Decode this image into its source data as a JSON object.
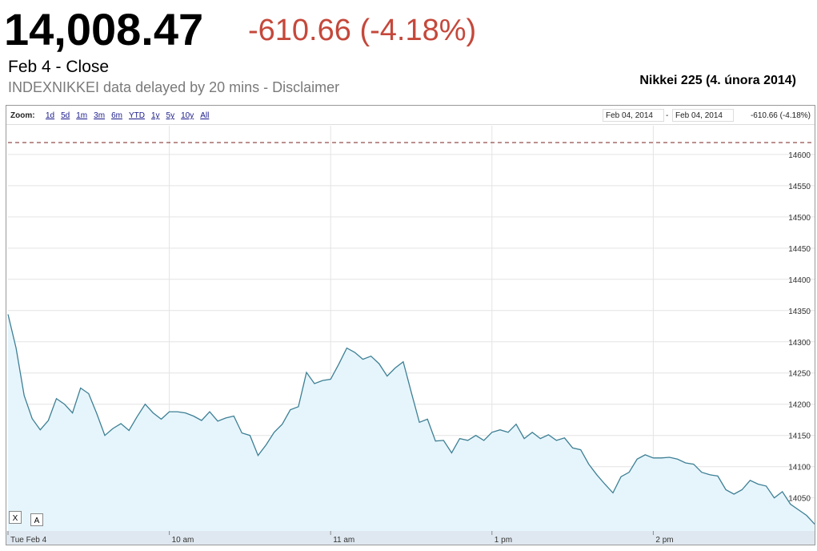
{
  "header": {
    "price": "14,008.47",
    "change": "-610.66 (-4.18%)",
    "status": "Feb 4 - Close",
    "source": "INDEXNIKKEI data delayed by 20 mins - Disclaimer",
    "caption": "Nikkei 225 (4. února 2014)"
  },
  "toolbar": {
    "zoom_label": "Zoom:",
    "zoom_options": [
      "1d",
      "5d",
      "1m",
      "3m",
      "6m",
      "YTD",
      "1y",
      "5y",
      "10y",
      "All"
    ],
    "range_start": "Feb 04, 2014",
    "range_separator": "-",
    "range_end": "Feb 04, 2014",
    "range_change": "-610.66 (-4.18%)",
    "buttons": [
      "X",
      "A"
    ]
  },
  "chart_data": {
    "type": "line",
    "categories": [
      "Tue Feb 4",
      null,
      null,
      null,
      null,
      null,
      null,
      null,
      null,
      null,
      null,
      null,
      null,
      null,
      null,
      null,
      null,
      null,
      null,
      null,
      "10 am",
      null,
      null,
      null,
      null,
      null,
      null,
      null,
      null,
      null,
      null,
      null,
      null,
      null,
      null,
      null,
      null,
      null,
      null,
      null,
      "11 am",
      null,
      null,
      null,
      null,
      null,
      null,
      null,
      null,
      null,
      null,
      null,
      null,
      null,
      null,
      null,
      null,
      null,
      null,
      null,
      "1 pm",
      null,
      null,
      null,
      null,
      null,
      null,
      null,
      null,
      null,
      null,
      null,
      null,
      null,
      null,
      null,
      null,
      null,
      null,
      null,
      "2 pm",
      null,
      null,
      null,
      null,
      null,
      null,
      null,
      null,
      null,
      null,
      null,
      null,
      null,
      null,
      null,
      null,
      null,
      null,
      null,
      null
    ],
    "series": [
      {
        "name": "Nikkei 225",
        "color": "#3d7f94",
        "values": [
          14344,
          14290,
          14214,
          14177,
          14159,
          14174,
          14209,
          14200,
          14186,
          14226,
          14217,
          14185,
          14150,
          14161,
          14169,
          14158,
          14180,
          14200,
          14186,
          14176,
          14188,
          14188,
          14186,
          14181,
          14174,
          14188,
          14173,
          14178,
          14181,
          14154,
          14150,
          14118,
          14135,
          14155,
          14168,
          14191,
          14196,
          14251,
          14233,
          14238,
          14240,
          14264,
          14290,
          14283,
          14272,
          14277,
          14265,
          14245,
          14258,
          14268,
          14219,
          14171,
          14176,
          14141,
          14142,
          14122,
          14145,
          14142,
          14150,
          14142,
          14155,
          14159,
          14155,
          14168,
          14145,
          14155,
          14145,
          14151,
          14142,
          14146,
          14130,
          14127,
          14104,
          14087,
          14072,
          14058,
          14084,
          14091,
          14112,
          14119,
          14114,
          14114,
          14115,
          14112,
          14106,
          14104,
          14091,
          14087,
          14085,
          14063,
          14056,
          14063,
          14078,
          14072,
          14069,
          14050,
          14060,
          14040,
          14031,
          14022,
          14008
        ]
      }
    ],
    "reference_line": 14619.13,
    "ylim": [
      13997,
      14646
    ],
    "yticks": [
      14050,
      14100,
      14150,
      14200,
      14250,
      14300,
      14350,
      14400,
      14450,
      14500,
      14550,
      14600
    ],
    "grid": true
  }
}
